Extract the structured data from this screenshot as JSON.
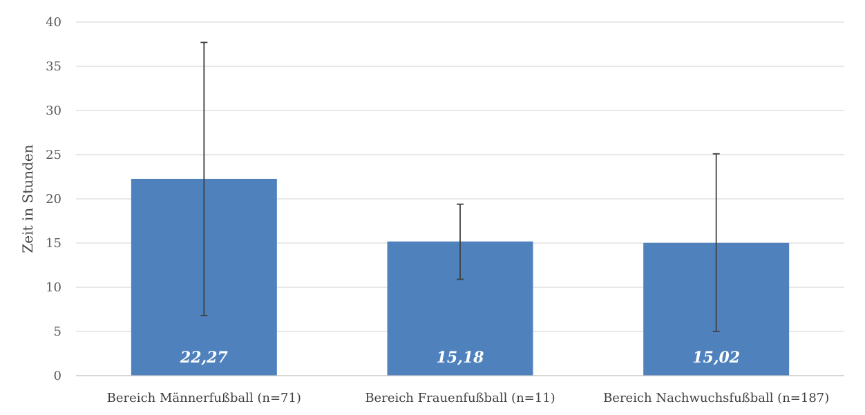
{
  "chart_data": {
    "type": "bar",
    "title": "",
    "xlabel": "",
    "ylabel": "Zeit in Stunden",
    "ylim": [
      0,
      40
    ],
    "yticks": [
      "0",
      "5",
      "10",
      "15",
      "20",
      "25",
      "30",
      "35",
      "40"
    ],
    "categories": [
      "Bereich Männerfußball (n=71)",
      "Bereich Frauenfußball (n=11)",
      "Bereich Nachwuchsfußball (n=187)"
    ],
    "values": [
      22.27,
      15.18,
      15.02
    ],
    "value_labels": [
      "22,27",
      "15,18",
      "15,02"
    ],
    "error_bars": [
      {
        "low": 6.8,
        "high": 37.7
      },
      {
        "low": 10.9,
        "high": 19.4
      },
      {
        "low": 5.0,
        "high": 25.1
      }
    ],
    "grid": true,
    "legend": "none",
    "colors": {
      "bar": "#4f81bd",
      "grid": "#d9d9d9",
      "axis": "#bfbfbf",
      "error_bar": "#404040",
      "data_label": "#ffffff"
    }
  }
}
